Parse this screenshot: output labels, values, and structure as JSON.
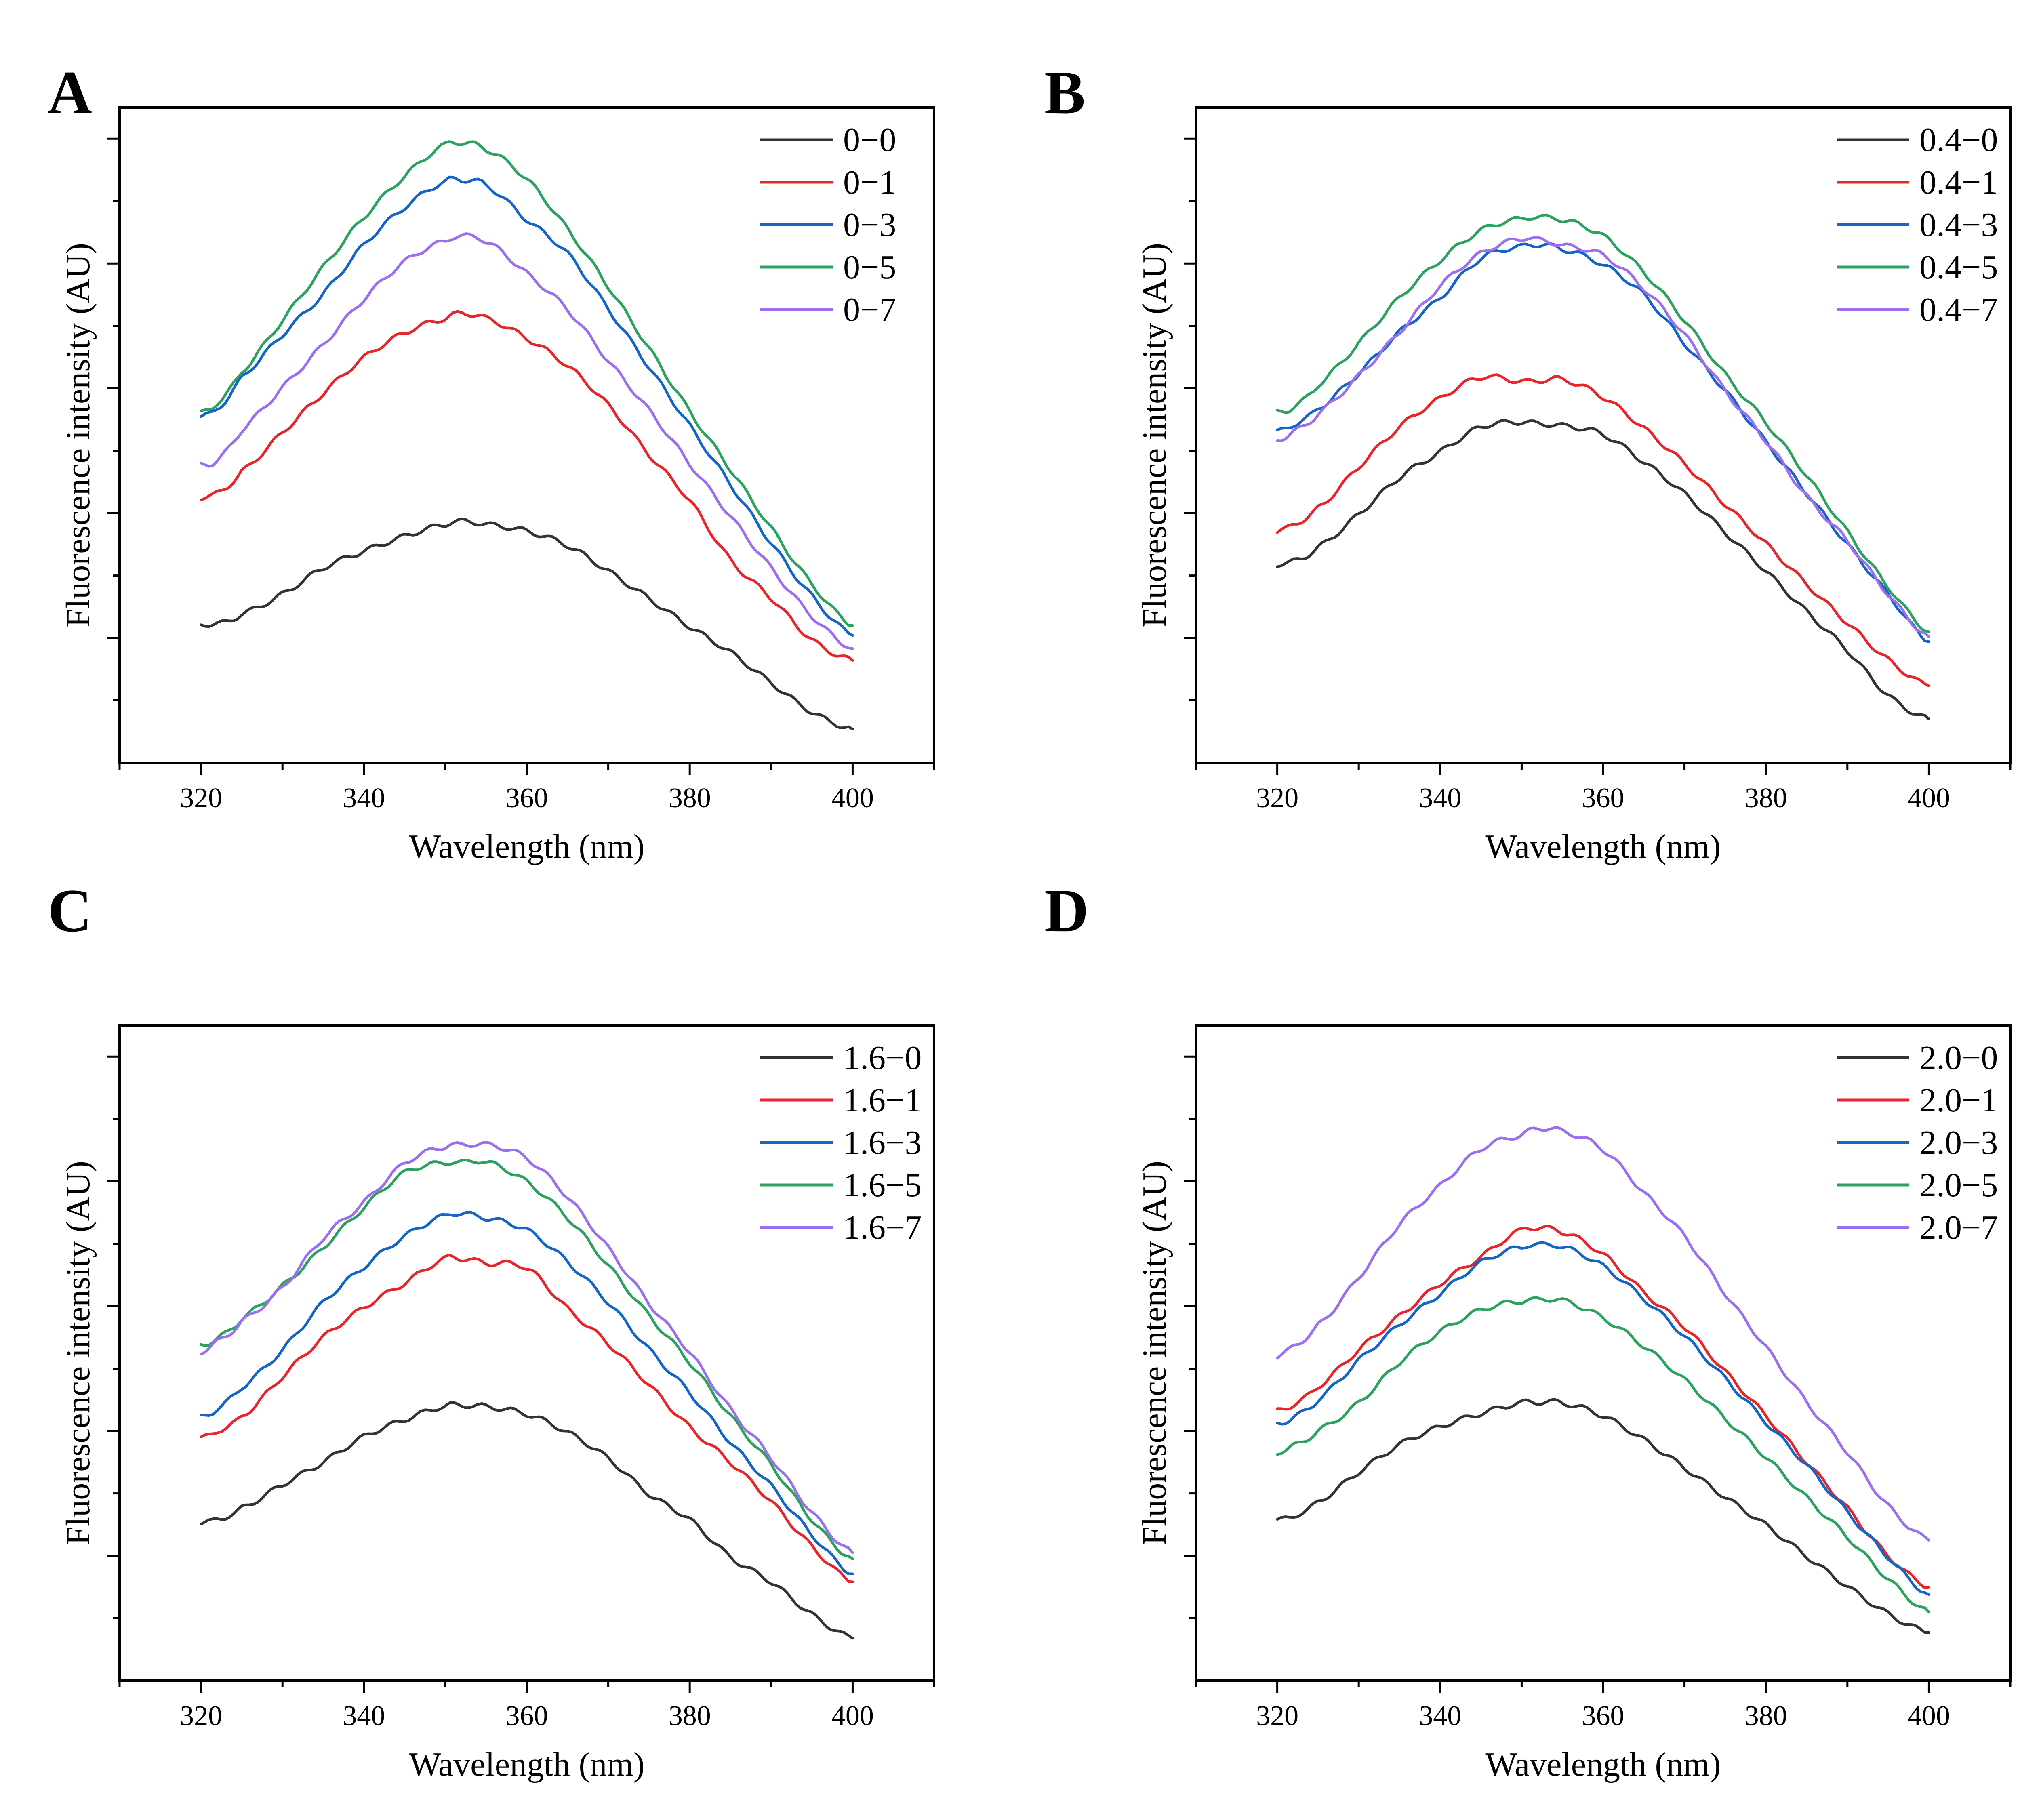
{
  "chart_data": [
    {
      "type": "line",
      "panel_label": "A",
      "xlabel": "Wavelength (nm)",
      "ylabel": "Fluorescence intensity (AU)",
      "xlim": [
        310,
        410
      ],
      "x_ticks": [
        320,
        340,
        360,
        380,
        400
      ],
      "y_tick_labels": false,
      "legend_position": "top-right",
      "grid": false,
      "x": [
        320,
        322,
        325,
        330,
        335,
        340,
        345,
        350,
        352,
        355,
        360,
        365,
        370,
        375,
        380,
        385,
        390,
        395,
        400
      ],
      "series": [
        {
          "name": "0−0",
          "color": "#333333",
          "values": [
            0.223,
            0.222,
            0.238,
            0.27,
            0.312,
            0.339,
            0.363,
            0.382,
            0.387,
            0.382,
            0.371,
            0.348,
            0.307,
            0.263,
            0.218,
            0.177,
            0.128,
            0.081,
            0.054
          ]
        },
        {
          "name": "0−1",
          "color": "#e8262a",
          "values": [
            0.425,
            0.432,
            0.466,
            0.529,
            0.592,
            0.649,
            0.689,
            0.712,
            0.72,
            0.712,
            0.68,
            0.636,
            0.573,
            0.494,
            0.42,
            0.325,
            0.264,
            0.197,
            0.164
          ]
        },
        {
          "name": "0−3",
          "color": "#1565c8",
          "values": [
            0.555,
            0.567,
            0.617,
            0.686,
            0.751,
            0.83,
            0.89,
            0.931,
            0.934,
            0.925,
            0.87,
            0.816,
            0.727,
            0.634,
            0.54,
            0.446,
            0.352,
            0.267,
            0.204
          ]
        },
        {
          "name": "0−5",
          "color": "#2ca25f",
          "values": [
            0.56,
            0.577,
            0.626,
            0.709,
            0.794,
            0.874,
            0.94,
            0.99,
            0.993,
            0.983,
            0.935,
            0.855,
            0.763,
            0.664,
            0.563,
            0.47,
            0.376,
            0.286,
            0.22
          ]
        },
        {
          "name": "0−7",
          "color": "#9b6ff0",
          "values": [
            0.478,
            0.485,
            0.533,
            0.601,
            0.67,
            0.743,
            0.803,
            0.836,
            0.844,
            0.835,
            0.784,
            0.726,
            0.644,
            0.565,
            0.479,
            0.395,
            0.312,
            0.235,
            0.183
          ]
        }
      ]
    },
    {
      "type": "line",
      "panel_label": "B",
      "xlabel": "Wavelength (nm)",
      "ylabel": "Fluorescence intensity (AU)",
      "xlim": [
        310,
        410
      ],
      "x_ticks": [
        320,
        340,
        360,
        380,
        400
      ],
      "y_tick_labels": false,
      "legend_position": "top-right",
      "grid": false,
      "x": [
        320,
        322,
        325,
        330,
        335,
        340,
        345,
        350,
        352,
        355,
        360,
        365,
        370,
        375,
        380,
        385,
        390,
        395,
        400
      ],
      "series": [
        {
          "name": "0.4−0",
          "color": "#333333",
          "values": [
            0.318,
            0.323,
            0.345,
            0.398,
            0.457,
            0.498,
            0.538,
            0.546,
            0.543,
            0.54,
            0.526,
            0.482,
            0.431,
            0.369,
            0.307,
            0.242,
            0.18,
            0.108,
            0.07
          ]
        },
        {
          "name": "0.4−1",
          "color": "#e8262a",
          "values": [
            0.37,
            0.382,
            0.408,
            0.474,
            0.538,
            0.584,
            0.618,
            0.611,
            0.612,
            0.614,
            0.586,
            0.536,
            0.479,
            0.414,
            0.351,
            0.286,
            0.224,
            0.165,
            0.123
          ]
        },
        {
          "name": "0.4−3",
          "color": "#1565c8",
          "values": [
            0.53,
            0.542,
            0.567,
            0.624,
            0.69,
            0.745,
            0.808,
            0.827,
            0.83,
            0.823,
            0.798,
            0.75,
            0.672,
            0.596,
            0.514,
            0.432,
            0.35,
            0.27,
            0.194
          ]
        },
        {
          "name": "0.4−5",
          "color": "#2ca25f",
          "values": [
            0.562,
            0.57,
            0.605,
            0.672,
            0.745,
            0.805,
            0.853,
            0.872,
            0.874,
            0.87,
            0.844,
            0.786,
            0.709,
            0.622,
            0.545,
            0.46,
            0.37,
            0.282,
            0.21
          ]
        },
        {
          "name": "0.4−7",
          "color": "#9b6ff0",
          "values": [
            0.518,
            0.53,
            0.559,
            0.62,
            0.69,
            0.764,
            0.816,
            0.84,
            0.838,
            0.829,
            0.813,
            0.76,
            0.686,
            0.596,
            0.516,
            0.427,
            0.355,
            0.27,
            0.202
          ]
        }
      ]
    },
    {
      "type": "line",
      "panel_label": "C",
      "xlabel": "Wavelength (nm)",
      "ylabel": "Fluorescence intensity (AU)",
      "xlim": [
        310,
        410
      ],
      "x_ticks": [
        320,
        340,
        360,
        380,
        400
      ],
      "y_tick_labels": false,
      "legend_position": "top-right",
      "grid": false,
      "x": [
        320,
        322,
        325,
        330,
        335,
        340,
        345,
        350,
        352,
        355,
        360,
        365,
        370,
        375,
        380,
        385,
        390,
        395,
        400
      ],
      "series": [
        {
          "name": "1.6−0",
          "color": "#333333",
          "values": [
            0.253,
            0.258,
            0.276,
            0.314,
            0.35,
            0.391,
            0.418,
            0.44,
            0.441,
            0.439,
            0.427,
            0.398,
            0.356,
            0.299,
            0.258,
            0.198,
            0.158,
            0.106,
            0.068
          ]
        },
        {
          "name": "1.6−1",
          "color": "#e8262a",
          "values": [
            0.388,
            0.4,
            0.423,
            0.487,
            0.55,
            0.598,
            0.637,
            0.676,
            0.676,
            0.669,
            0.661,
            0.596,
            0.54,
            0.474,
            0.406,
            0.35,
            0.287,
            0.215,
            0.158
          ]
        },
        {
          "name": "1.6−3",
          "color": "#1565c8",
          "values": [
            0.422,
            0.436,
            0.47,
            0.53,
            0.606,
            0.663,
            0.712,
            0.745,
            0.748,
            0.741,
            0.722,
            0.671,
            0.606,
            0.531,
            0.461,
            0.382,
            0.312,
            0.234,
            0.171
          ]
        },
        {
          "name": "1.6−5",
          "color": "#2ca25f",
          "values": [
            0.539,
            0.548,
            0.58,
            0.632,
            0.694,
            0.758,
            0.814,
            0.83,
            0.83,
            0.831,
            0.799,
            0.742,
            0.665,
            0.585,
            0.51,
            0.424,
            0.346,
            0.258,
            0.195
          ]
        },
        {
          "name": "1.6−7",
          "color": "#9b6ff0",
          "values": [
            0.527,
            0.543,
            0.575,
            0.63,
            0.709,
            0.766,
            0.829,
            0.856,
            0.858,
            0.859,
            0.837,
            0.775,
            0.693,
            0.605,
            0.526,
            0.435,
            0.357,
            0.27,
            0.205
          ]
        }
      ]
    },
    {
      "type": "line",
      "panel_label": "D",
      "xlabel": "Wavelength (nm)",
      "ylabel": "Fluorescence intensity (AU)",
      "xlim": [
        310,
        410
      ],
      "x_ticks": [
        320,
        340,
        360,
        380,
        400
      ],
      "y_tick_labels": false,
      "legend_position": "top-right",
      "grid": false,
      "x": [
        320,
        322,
        325,
        330,
        335,
        340,
        345,
        350,
        352,
        355,
        360,
        365,
        370,
        375,
        380,
        385,
        390,
        395,
        400
      ],
      "series": [
        {
          "name": "2.0−0",
          "color": "#333333",
          "values": [
            0.257,
            0.264,
            0.286,
            0.334,
            0.378,
            0.407,
            0.428,
            0.445,
            0.446,
            0.445,
            0.424,
            0.386,
            0.341,
            0.294,
            0.249,
            0.199,
            0.151,
            0.107,
            0.077
          ]
        },
        {
          "name": "2.0−1",
          "color": "#e8262a",
          "values": [
            0.432,
            0.443,
            0.471,
            0.53,
            0.584,
            0.636,
            0.679,
            0.722,
            0.725,
            0.719,
            0.683,
            0.622,
            0.567,
            0.495,
            0.424,
            0.35,
            0.276,
            0.2,
            0.15
          ]
        },
        {
          "name": "2.0−3",
          "color": "#1565c8",
          "values": [
            0.412,
            0.422,
            0.45,
            0.513,
            0.57,
            0.62,
            0.67,
            0.695,
            0.698,
            0.695,
            0.664,
            0.612,
            0.552,
            0.484,
            0.414,
            0.345,
            0.27,
            0.198,
            0.138
          ]
        },
        {
          "name": "2.0−5",
          "color": "#2ca25f",
          "values": [
            0.366,
            0.376,
            0.4,
            0.445,
            0.51,
            0.559,
            0.594,
            0.608,
            0.61,
            0.609,
            0.581,
            0.536,
            0.482,
            0.42,
            0.358,
            0.293,
            0.23,
            0.163,
            0.11
          ]
        },
        {
          "name": "2.0−7",
          "color": "#9b6ff0",
          "values": [
            0.519,
            0.536,
            0.569,
            0.646,
            0.731,
            0.793,
            0.852,
            0.874,
            0.885,
            0.88,
            0.851,
            0.782,
            0.712,
            0.62,
            0.534,
            0.446,
            0.366,
            0.28,
            0.225
          ]
        }
      ]
    }
  ]
}
